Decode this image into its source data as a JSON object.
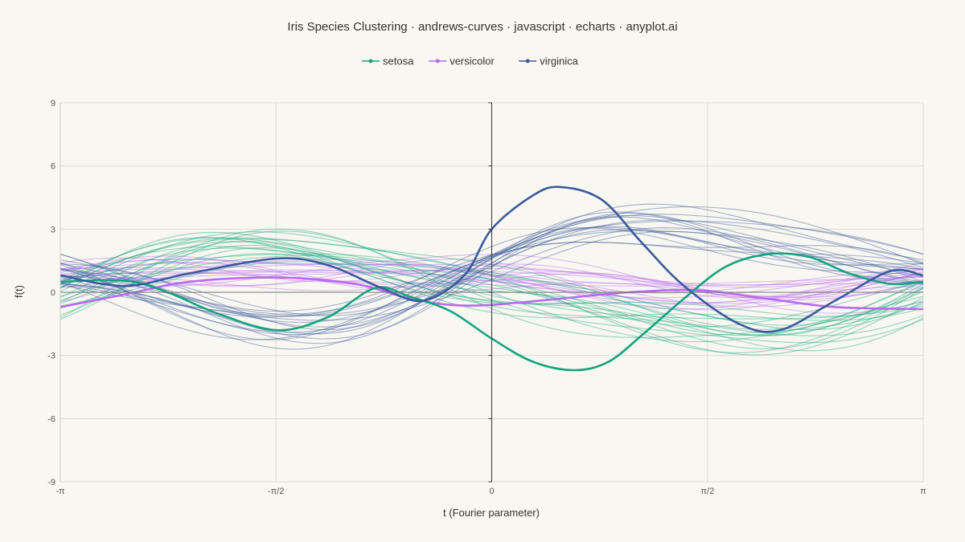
{
  "chart_data": {
    "type": "line",
    "title": "Iris Species Clustering · andrews-curves · javascript · echarts · anyplot.ai",
    "xlabel": "t (Fourier parameter)",
    "ylabel": "f(t)",
    "xlim": [
      -3.14159,
      3.14159
    ],
    "ylim": [
      -9,
      9
    ],
    "x_ticks": [
      {
        "value": -3.14159,
        "label": "-π"
      },
      {
        "value": -1.5708,
        "label": "-π/2"
      },
      {
        "value": 0,
        "label": "0"
      },
      {
        "value": 1.5708,
        "label": "π/2"
      },
      {
        "value": 3.14159,
        "label": "π"
      }
    ],
    "y_ticks": [
      -9,
      -6,
      -3,
      0,
      3,
      6,
      9
    ],
    "legend_position": "top-center",
    "grid": true,
    "series": [
      {
        "name": "setosa",
        "color": "#14a37f"
      },
      {
        "name": "versicolor",
        "color": "#b86bf0"
      },
      {
        "name": "virginica",
        "color": "#3a5a9c"
      }
    ],
    "mean_curves": {
      "setosa": {
        "x": [
          -3.14,
          -2.67,
          -2.36,
          -2.0,
          -1.57,
          -1.2,
          -0.85,
          -0.6,
          -0.3,
          0,
          0.3,
          0.6,
          0.85,
          1.1,
          1.4,
          1.7,
          2.0,
          2.3,
          2.6,
          2.9,
          3.14
        ],
        "y": [
          0.5,
          0.55,
          0.0,
          -1.0,
          -1.8,
          -1.2,
          0.2,
          -0.2,
          -0.9,
          -2.2,
          -3.3,
          -3.7,
          -3.3,
          -2.0,
          -0.3,
          1.2,
          1.8,
          1.7,
          0.9,
          0.4,
          0.5
        ]
      },
      "versicolor": {
        "x": [
          -3.14,
          -2.67,
          -2.2,
          -1.57,
          -1.0,
          -0.6,
          -0.3,
          0,
          0.5,
          1.0,
          1.5,
          2.0,
          2.5,
          3.14
        ],
        "y": [
          -0.7,
          -0.1,
          0.5,
          0.7,
          0.4,
          -0.3,
          -0.6,
          -0.6,
          -0.3,
          0.0,
          0.1,
          -0.3,
          -0.7,
          -0.8
        ]
      },
      "virginica": {
        "x": [
          -3.14,
          -2.67,
          -2.2,
          -1.57,
          -1.2,
          -0.8,
          -0.5,
          -0.2,
          0,
          0.3,
          0.5,
          0.8,
          1.1,
          1.4,
          1.8,
          2.1,
          2.5,
          2.9,
          3.14
        ],
        "y": [
          0.8,
          0.3,
          0.9,
          1.6,
          1.3,
          0.2,
          -0.4,
          0.8,
          3.0,
          4.6,
          5.0,
          4.4,
          2.3,
          0.3,
          -1.5,
          -1.8,
          -0.4,
          1.0,
          0.8
        ]
      }
    }
  }
}
